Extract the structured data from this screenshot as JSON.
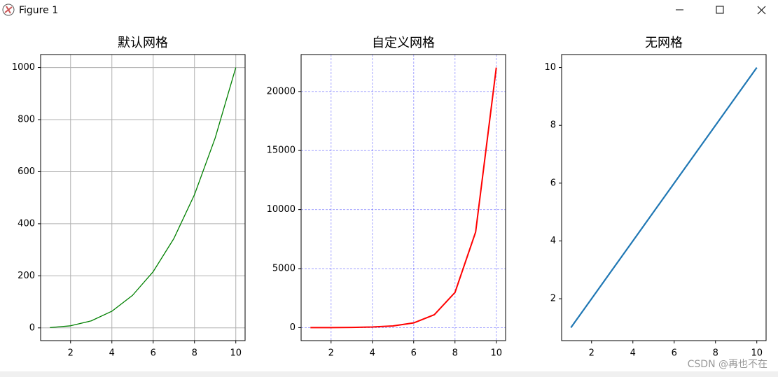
{
  "window_title": "Figure 1",
  "watermark": "CSDN @再也不在",
  "chart_data": [
    {
      "type": "line",
      "title": "默认网格",
      "x": [
        1,
        2,
        3,
        4,
        5,
        6,
        7,
        8,
        9,
        10
      ],
      "values": [
        1,
        8,
        27,
        64,
        125,
        216,
        343,
        512,
        729,
        1000
      ],
      "color": "#008000",
      "linewidth": 1.3,
      "xlim": [
        0.55,
        10.45
      ],
      "ylim": [
        -48.95,
        1049.95
      ],
      "xticks": [
        2,
        4,
        6,
        8,
        10
      ],
      "yticks": [
        0,
        200,
        400,
        600,
        800,
        1000
      ],
      "grid": true,
      "grid_color": "#b0b0b0",
      "grid_linestyle": "solid"
    },
    {
      "type": "line",
      "title": "自定义网格",
      "x": [
        1,
        2,
        3,
        4,
        5,
        6,
        7,
        8,
        9,
        10
      ],
      "values": [
        2.718,
        7.389,
        20.09,
        54.6,
        148.4,
        403.4,
        1096.6,
        2981,
        8103,
        22026
      ],
      "color": "#ff0000",
      "linewidth": 2,
      "xlim": [
        0.55,
        10.45
      ],
      "ylim": [
        -1098.5,
        23127.6
      ],
      "xticks": [
        2,
        4,
        6,
        8,
        10
      ],
      "yticks": [
        0,
        5000,
        10000,
        15000,
        20000
      ],
      "grid": true,
      "grid_color": "rgba(0,0,255,0.35)",
      "grid_linestyle": "dashed"
    },
    {
      "type": "line",
      "title": "无网格",
      "x": [
        1,
        2,
        3,
        4,
        5,
        6,
        7,
        8,
        9,
        10
      ],
      "values": [
        1,
        2,
        3,
        4,
        5,
        6,
        7,
        8,
        9,
        10
      ],
      "color": "#1f77b4",
      "linewidth": 2.2,
      "xlim": [
        0.55,
        10.45
      ],
      "ylim": [
        0.55,
        10.45
      ],
      "xticks": [
        2,
        4,
        6,
        8,
        10
      ],
      "yticks": [
        2,
        4,
        6,
        8,
        10
      ],
      "grid": false
    }
  ]
}
